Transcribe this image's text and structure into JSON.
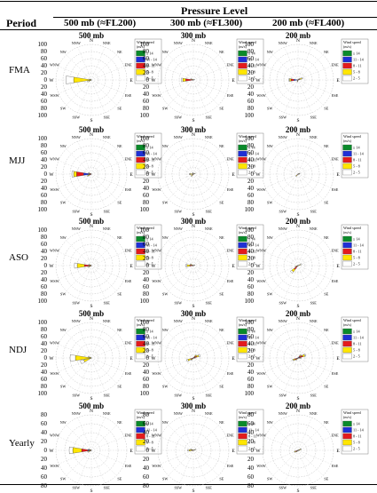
{
  "table": {
    "period_header": "Period",
    "pressure_header": "Pressure Level",
    "columns": [
      "500 mb (≈FL200)",
      "300 mb (≈FL300)",
      "200 mb (≈FL400)"
    ],
    "rows": [
      "FMA",
      "MJJ",
      "ASO",
      "NDJ",
      "Yearly"
    ]
  },
  "chart_data": {
    "type": "windrose",
    "directions": [
      "N",
      "NNE",
      "NE",
      "ENE",
      "E",
      "ESE",
      "SE",
      "SSE",
      "S",
      "SSW",
      "SW",
      "WSW",
      "W",
      "WNW",
      "NW",
      "NNW"
    ],
    "legend_title": "Wind speed",
    "legend_unit": "(m/s)",
    "speed_bins": [
      "≥ 14",
      "11 - 14",
      "8 - 11",
      "5 - 8",
      "2 - 5"
    ],
    "colors": {
      "≥ 14": "#0a8a2a",
      "11 - 14": "#1f2fd6",
      "8 - 11": "#e41a1c",
      "5 - 8": "#ffe600",
      "2 - 5": "#ffffff"
    },
    "panels": [
      {
        "period": "FMA",
        "level": "500 mb",
        "rmax": 100,
        "ticks": [
          20,
          40,
          60,
          80,
          100
        ],
        "petals": {
          "W": [
            0,
            0,
            0,
            50,
            22
          ],
          "WSW": [
            0,
            0,
            0,
            8,
            4
          ],
          "WNW": [
            0,
            0,
            0,
            4,
            2
          ]
        }
      },
      {
        "period": "FMA",
        "level": "300 mb",
        "rmax": 100,
        "ticks": [
          20,
          40,
          60,
          80,
          100
        ],
        "petals": {
          "W": [
            0,
            0,
            22,
            8,
            4
          ],
          "WNW": [
            0,
            0,
            3,
            3,
            2
          ],
          "ENE": [
            0,
            0,
            0,
            2,
            2
          ]
        }
      },
      {
        "period": "FMA",
        "level": "200 mb",
        "rmax": 100,
        "ticks": [
          20,
          40,
          60,
          80,
          100
        ],
        "petals": {
          "W": [
            0,
            12,
            8,
            4,
            2
          ],
          "ENE": [
            0,
            0,
            6,
            5,
            3
          ],
          "NE": [
            0,
            0,
            0,
            4,
            2
          ],
          "SSW": [
            0,
            0,
            3,
            2,
            1
          ]
        }
      },
      {
        "period": "MJJ",
        "level": "500 mb",
        "rmax": 100,
        "ticks": [
          20,
          40,
          60,
          80,
          100
        ],
        "petals": {
          "W": [
            0,
            22,
            20,
            8,
            5
          ],
          "WSW": [
            0,
            0,
            6,
            4,
            3
          ],
          "WNW": [
            0,
            0,
            4,
            3,
            2
          ]
        }
      },
      {
        "period": "MJJ",
        "level": "300 mb",
        "rmax": 100,
        "ticks": [
          20,
          40,
          60,
          80,
          100
        ],
        "petals": {
          "W": [
            0,
            0,
            3,
            6,
            3
          ],
          "SW": [
            0,
            0,
            4,
            3,
            2
          ],
          "ENE": [
            0,
            0,
            0,
            4,
            2
          ],
          "NNW": [
            0,
            0,
            0,
            3,
            2
          ]
        }
      },
      {
        "period": "MJJ",
        "level": "200 mb",
        "rmax": 100,
        "ticks": [
          20,
          40,
          60,
          80,
          100
        ],
        "petals": {
          "SW": [
            0,
            0,
            4,
            3,
            2
          ],
          "ENE": [
            0,
            0,
            0,
            4,
            2
          ],
          "E": [
            0,
            0,
            0,
            2,
            2
          ]
        }
      },
      {
        "period": "ASO",
        "level": "500 mb",
        "rmax": 100,
        "ticks": [
          20,
          40,
          60,
          80,
          100
        ],
        "petals": {
          "W": [
            0,
            0,
            20,
            20,
            8
          ],
          "WSW": [
            0,
            0,
            4,
            4,
            3
          ],
          "WNW": [
            0,
            0,
            3,
            3,
            2
          ]
        }
      },
      {
        "period": "ASO",
        "level": "300 mb",
        "rmax": 100,
        "ticks": [
          20,
          40,
          60,
          80,
          100
        ],
        "petals": {
          "W": [
            0,
            0,
            10,
            8,
            4
          ],
          "WNW": [
            0,
            0,
            4,
            4,
            2
          ],
          "ENE": [
            0,
            0,
            0,
            3,
            2
          ]
        }
      },
      {
        "period": "ASO",
        "level": "200 mb",
        "rmax": 100,
        "ticks": [
          20,
          40,
          60,
          80,
          100
        ],
        "petals": {
          "SW": [
            0,
            0,
            14,
            8,
            5
          ],
          "ENE": [
            0,
            0,
            0,
            7,
            4
          ],
          "WSW": [
            0,
            0,
            4,
            3,
            2
          ]
        }
      },
      {
        "period": "NDJ",
        "level": "500 mb",
        "rmax": 100,
        "ticks": [
          20,
          40,
          60,
          80,
          100
        ],
        "petals": {
          "W": [
            0,
            0,
            0,
            45,
            15
          ],
          "WSW": [
            0,
            0,
            0,
            22,
            10
          ],
          "WNW": [
            0,
            0,
            0,
            6,
            4
          ]
        }
      },
      {
        "period": "NDJ",
        "level": "300 mb",
        "rmax": 100,
        "ticks": [
          20,
          40,
          60,
          80,
          100
        ],
        "petals": {
          "WSW": [
            0,
            0,
            8,
            8,
            4
          ],
          "ENE": [
            0,
            4,
            6,
            6,
            4
          ],
          "NE": [
            0,
            2,
            4,
            4,
            2
          ],
          "SW": [
            0,
            0,
            4,
            3,
            2
          ],
          "E": [
            0,
            0,
            0,
            4,
            2
          ]
        }
      },
      {
        "period": "NDJ",
        "level": "200 mb",
        "rmax": 100,
        "ticks": [
          20,
          40,
          60,
          80,
          100
        ],
        "petals": {
          "ENE": [
            0,
            6,
            8,
            6,
            3
          ],
          "WSW": [
            0,
            4,
            6,
            4,
            2
          ],
          "NE": [
            0,
            4,
            4,
            3,
            2
          ],
          "SW": [
            0,
            0,
            4,
            3,
            2
          ],
          "E": [
            0,
            0,
            4,
            3,
            2
          ]
        }
      },
      {
        "period": "Yearly",
        "level": "500 mb",
        "rmax": 80,
        "ticks": [
          20,
          40,
          60,
          80
        ],
        "petals": {
          "W": [
            0,
            8,
            14,
            20,
            8
          ],
          "WSW": [
            0,
            0,
            3,
            4,
            2
          ],
          "WNW": [
            0,
            0,
            2,
            3,
            2
          ]
        }
      },
      {
        "period": "Yearly",
        "level": "300 mb",
        "rmax": 80,
        "ticks": [
          20,
          40,
          60,
          80
        ],
        "petals": {
          "W": [
            0,
            0,
            4,
            6,
            3
          ],
          "ENE": [
            0,
            0,
            0,
            4,
            2
          ],
          "WNW": [
            0,
            0,
            2,
            3,
            2
          ]
        }
      },
      {
        "period": "Yearly",
        "level": "200 mb",
        "rmax": 80,
        "ticks": [
          20,
          40,
          60,
          80
        ],
        "petals": {
          "WSW": [
            0,
            3,
            3,
            2,
            1
          ],
          "ENE": [
            0,
            0,
            3,
            3,
            2
          ],
          "SW": [
            0,
            0,
            2,
            2,
            1
          ],
          "E": [
            0,
            0,
            0,
            2,
            1
          ]
        }
      }
    ]
  }
}
